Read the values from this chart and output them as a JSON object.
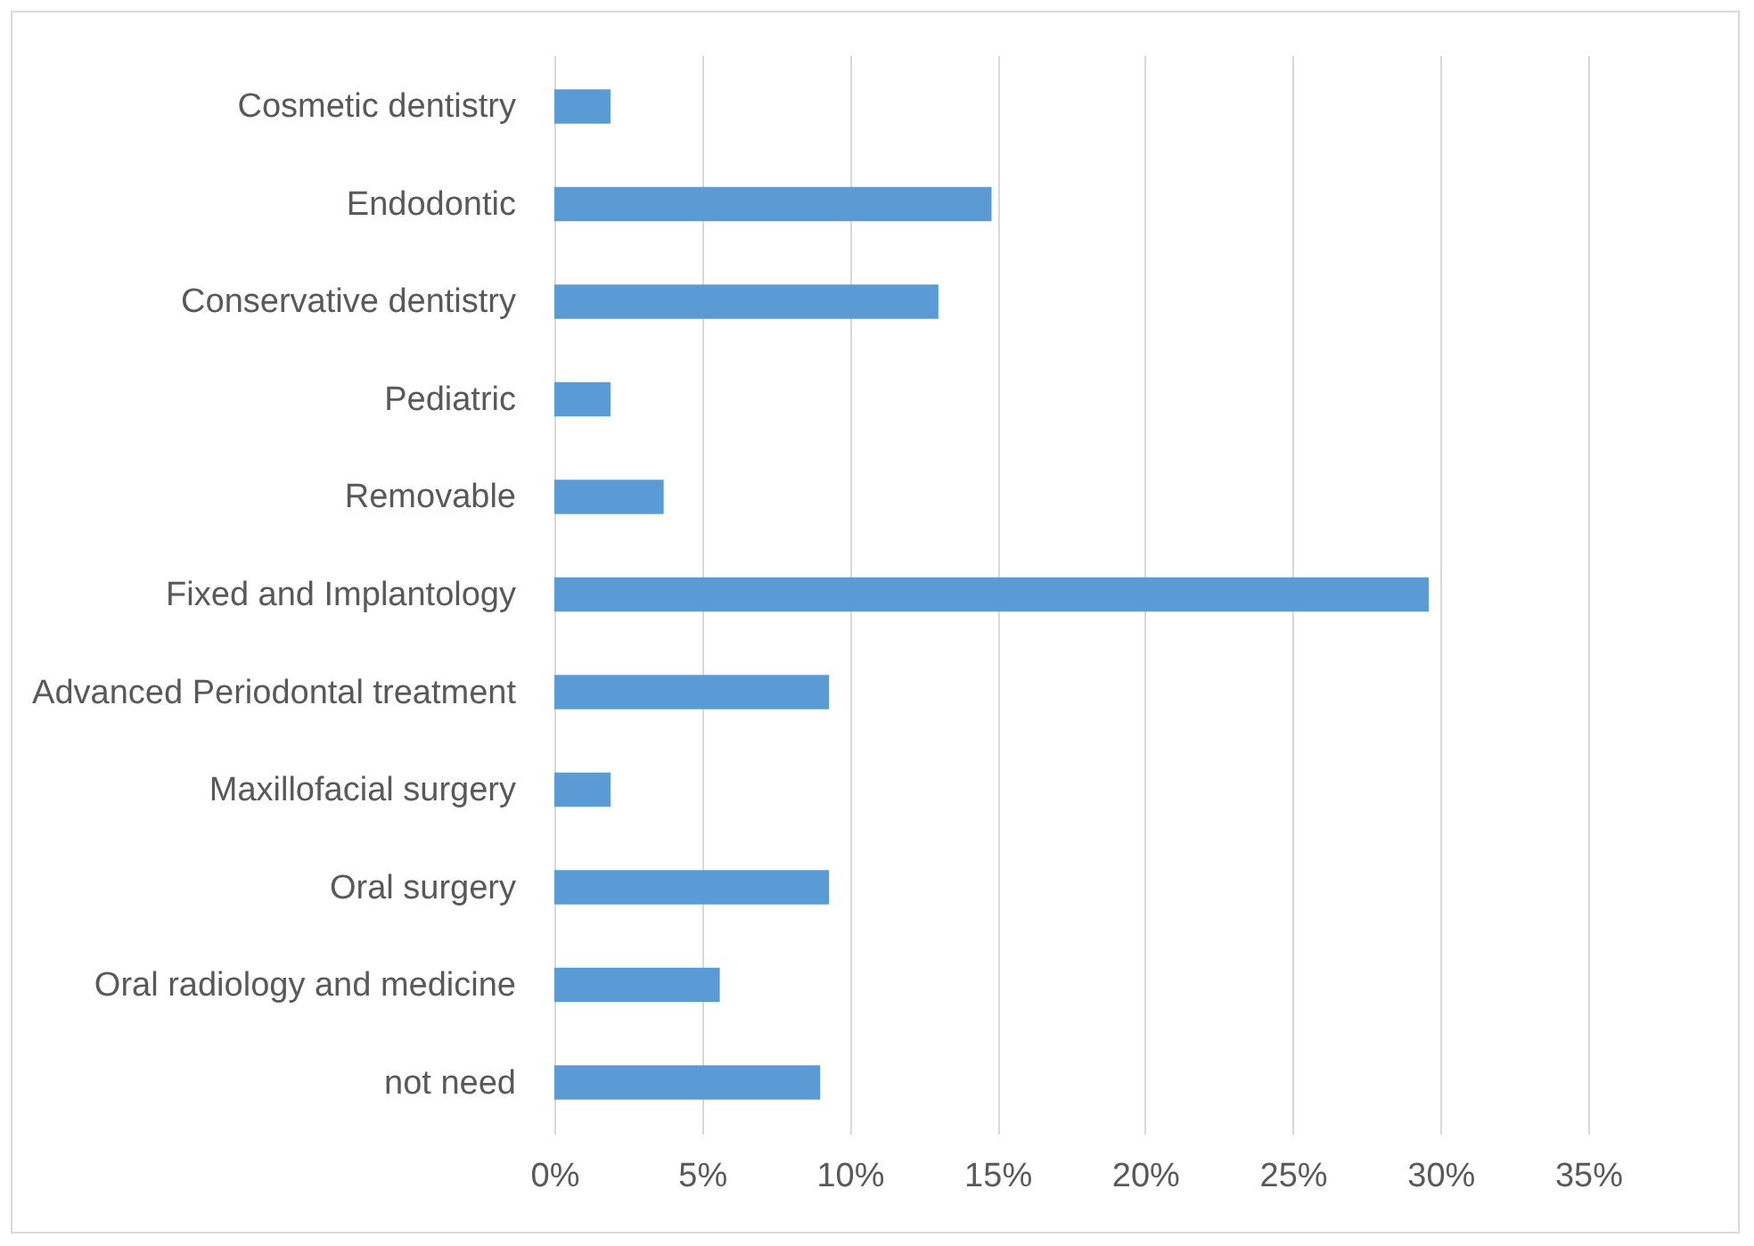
{
  "chart_data": {
    "type": "bar",
    "orientation": "horizontal",
    "categories": [
      "Cosmetic dentistry",
      "Endodontic",
      "Conservative dentistry",
      "Pediatric",
      "Removable",
      "Fixed and Implantology",
      "Advanced Periodontal treatment",
      "Maxillofacial surgery",
      "Oral surgery",
      "Oral radiology and medicine",
      "not need"
    ],
    "values": [
      1.9,
      14.8,
      13.0,
      1.9,
      3.7,
      29.6,
      9.3,
      1.9,
      9.3,
      5.6,
      9.0
    ],
    "color": "#5b9bd5",
    "xlim": [
      0,
      35
    ],
    "xticks": [
      {
        "value": 0,
        "label": "0%"
      },
      {
        "value": 5,
        "label": "5%"
      },
      {
        "value": 10,
        "label": "10%"
      },
      {
        "value": 15,
        "label": "15%"
      },
      {
        "value": 20,
        "label": "20%"
      },
      {
        "value": 25,
        "label": "25%"
      },
      {
        "value": 30,
        "label": "30%"
      },
      {
        "value": 35,
        "label": "35%"
      }
    ],
    "grid": "x"
  }
}
